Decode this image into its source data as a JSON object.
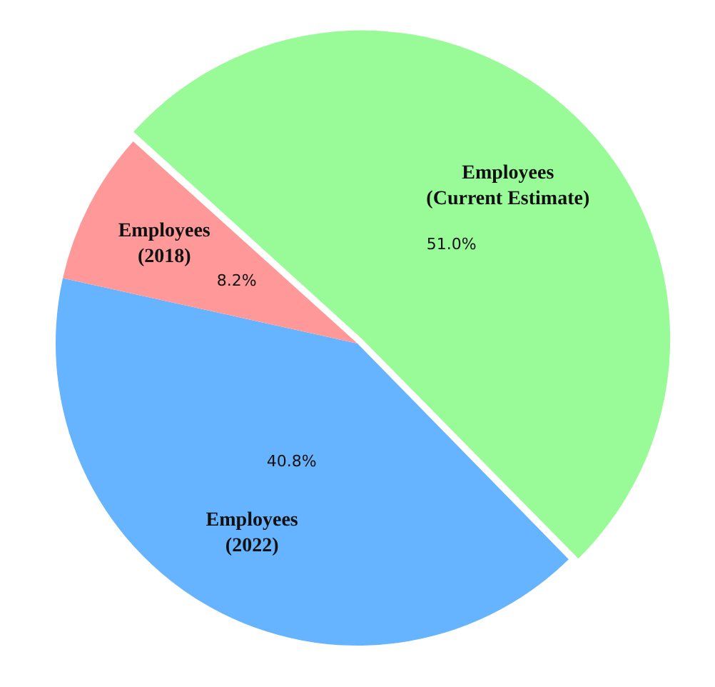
{
  "chart_data": {
    "type": "pie",
    "categories": [
      "Employees (Current Estimate)",
      "Employees (2022)",
      "Employees (2018)"
    ],
    "values": [
      51.0,
      40.8,
      8.2
    ],
    "colors": [
      "#98fb98",
      "#66b3ff",
      "#ff9999"
    ],
    "value_labels": [
      "51.0%",
      "40.8%",
      "8.2%"
    ],
    "legend": false
  }
}
